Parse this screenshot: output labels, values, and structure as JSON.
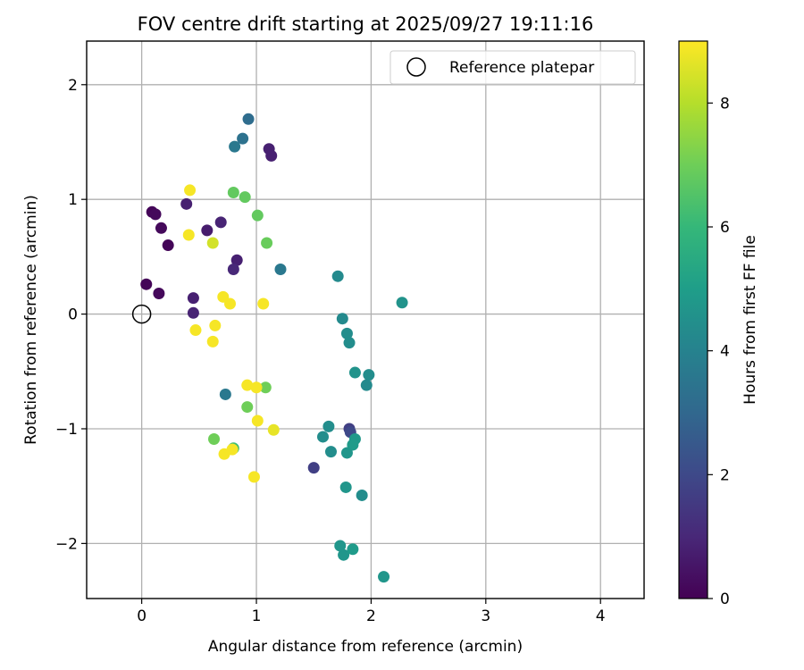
{
  "chart_data": {
    "type": "scatter",
    "title": "FOV centre drift starting at 2025/09/27 19:11:16",
    "xlabel": "Angular distance from reference (arcmin)",
    "ylabel": "Rotation from reference (arcmin)",
    "xlim": [
      -0.48,
      4.38
    ],
    "ylim": [
      -2.48,
      2.38
    ],
    "xticks": [
      0,
      1,
      2,
      3,
      4
    ],
    "xtick_labels": [
      "0",
      "1",
      "2",
      "3",
      "4"
    ],
    "yticks": [
      2,
      1,
      0,
      -1,
      -2
    ],
    "ytick_labels": [
      "2",
      "1",
      "0",
      "−1",
      "−2"
    ],
    "grid": true,
    "legend": {
      "position": "top-right",
      "label": "Reference platepar"
    },
    "reference_point": {
      "x": 0,
      "y": 0
    },
    "colorbar": {
      "label": "Hours from first FF file",
      "range": [
        0,
        9
      ],
      "ticks": [
        0,
        2,
        4,
        6,
        8
      ],
      "tick_labels": [
        "0",
        "2",
        "4",
        "6",
        "8"
      ],
      "colormap": [
        "#440154",
        "#482878",
        "#3e4989",
        "#31688e",
        "#26828e",
        "#1f9e89",
        "#35b779",
        "#6ece58",
        "#b5de2b",
        "#fde725"
      ]
    },
    "points": [
      {
        "x": 0.09,
        "y": 0.89,
        "h": 0.1
      },
      {
        "x": 0.12,
        "y": 0.87,
        "h": 0.2
      },
      {
        "x": 0.17,
        "y": 0.75,
        "h": 0.2
      },
      {
        "x": 0.23,
        "y": 0.6,
        "h": 0.1
      },
      {
        "x": 0.04,
        "y": 0.26,
        "h": 0.1
      },
      {
        "x": 0.15,
        "y": 0.18,
        "h": 0.2
      },
      {
        "x": 0.39,
        "y": 0.96,
        "h": 0.8
      },
      {
        "x": 0.57,
        "y": 0.73,
        "h": 0.7
      },
      {
        "x": 0.69,
        "y": 0.8,
        "h": 0.9
      },
      {
        "x": 0.83,
        "y": 0.47,
        "h": 0.8
      },
      {
        "x": 0.8,
        "y": 0.39,
        "h": 1.0
      },
      {
        "x": 0.45,
        "y": 0.14,
        "h": 0.8
      },
      {
        "x": 0.45,
        "y": 0.01,
        "h": 0.9
      },
      {
        "x": 1.11,
        "y": 1.44,
        "h": 0.8
      },
      {
        "x": 1.13,
        "y": 1.38,
        "h": 0.8
      },
      {
        "x": 0.93,
        "y": 1.7,
        "h": 3.2
      },
      {
        "x": 0.88,
        "y": 1.53,
        "h": 3.4
      },
      {
        "x": 0.81,
        "y": 1.46,
        "h": 3.6
      },
      {
        "x": 1.21,
        "y": 0.39,
        "h": 3.6
      },
      {
        "x": 0.73,
        "y": -0.7,
        "h": 3.6
      },
      {
        "x": 1.5,
        "y": -1.34,
        "h": 1.7
      },
      {
        "x": 1.81,
        "y": -1.0,
        "h": 1.7
      },
      {
        "x": 1.82,
        "y": -1.03,
        "h": 2.0
      },
      {
        "x": 1.71,
        "y": 0.33,
        "h": 4.3
      },
      {
        "x": 1.75,
        "y": -0.04,
        "h": 4.3
      },
      {
        "x": 1.79,
        "y": -0.17,
        "h": 4.4
      },
      {
        "x": 1.81,
        "y": -0.25,
        "h": 4.4
      },
      {
        "x": 1.86,
        "y": -0.51,
        "h": 4.6
      },
      {
        "x": 1.98,
        "y": -0.53,
        "h": 4.4
      },
      {
        "x": 1.96,
        "y": -0.62,
        "h": 4.3
      },
      {
        "x": 2.27,
        "y": 0.1,
        "h": 4.6
      },
      {
        "x": 1.63,
        "y": -0.98,
        "h": 4.4
      },
      {
        "x": 1.58,
        "y": -1.07,
        "h": 4.4
      },
      {
        "x": 1.86,
        "y": -1.09,
        "h": 4.8
      },
      {
        "x": 1.84,
        "y": -1.14,
        "h": 4.9
      },
      {
        "x": 1.65,
        "y": -1.2,
        "h": 4.4
      },
      {
        "x": 1.79,
        "y": -1.21,
        "h": 4.7
      },
      {
        "x": 1.78,
        "y": -1.51,
        "h": 4.7
      },
      {
        "x": 1.92,
        "y": -1.58,
        "h": 4.4
      },
      {
        "x": 1.73,
        "y": -2.02,
        "h": 4.7
      },
      {
        "x": 1.76,
        "y": -2.1,
        "h": 4.7
      },
      {
        "x": 1.84,
        "y": -2.05,
        "h": 4.9
      },
      {
        "x": 2.11,
        "y": -2.29,
        "h": 4.7
      },
      {
        "x": 0.8,
        "y": -1.17,
        "h": 6.2
      },
      {
        "x": 0.8,
        "y": 1.06,
        "h": 6.8
      },
      {
        "x": 0.9,
        "y": 1.02,
        "h": 6.8
      },
      {
        "x": 1.01,
        "y": 0.86,
        "h": 6.8
      },
      {
        "x": 1.09,
        "y": 0.62,
        "h": 6.9
      },
      {
        "x": 1.08,
        "y": -0.64,
        "h": 7.0
      },
      {
        "x": 0.92,
        "y": -0.81,
        "h": 7.0
      },
      {
        "x": 0.63,
        "y": -1.09,
        "h": 7.0
      },
      {
        "x": 0.42,
        "y": 1.08,
        "h": 8.9
      },
      {
        "x": 0.62,
        "y": 0.62,
        "h": 8.4
      },
      {
        "x": 0.41,
        "y": 0.69,
        "h": 8.9
      },
      {
        "x": 0.71,
        "y": 0.15,
        "h": 8.9
      },
      {
        "x": 0.77,
        "y": 0.09,
        "h": 8.9
      },
      {
        "x": 1.06,
        "y": 0.09,
        "h": 8.9
      },
      {
        "x": 0.47,
        "y": -0.14,
        "h": 8.9
      },
      {
        "x": 0.64,
        "y": -0.1,
        "h": 8.9
      },
      {
        "x": 0.62,
        "y": -0.24,
        "h": 8.9
      },
      {
        "x": 0.92,
        "y": -0.62,
        "h": 8.9
      },
      {
        "x": 1.0,
        "y": -0.64,
        "h": 8.9
      },
      {
        "x": 1.01,
        "y": -0.93,
        "h": 8.9
      },
      {
        "x": 1.15,
        "y": -1.01,
        "h": 8.7
      },
      {
        "x": 0.72,
        "y": -1.22,
        "h": 8.9
      },
      {
        "x": 0.79,
        "y": -1.18,
        "h": 8.9
      },
      {
        "x": 0.98,
        "y": -1.42,
        "h": 8.9
      }
    ]
  }
}
